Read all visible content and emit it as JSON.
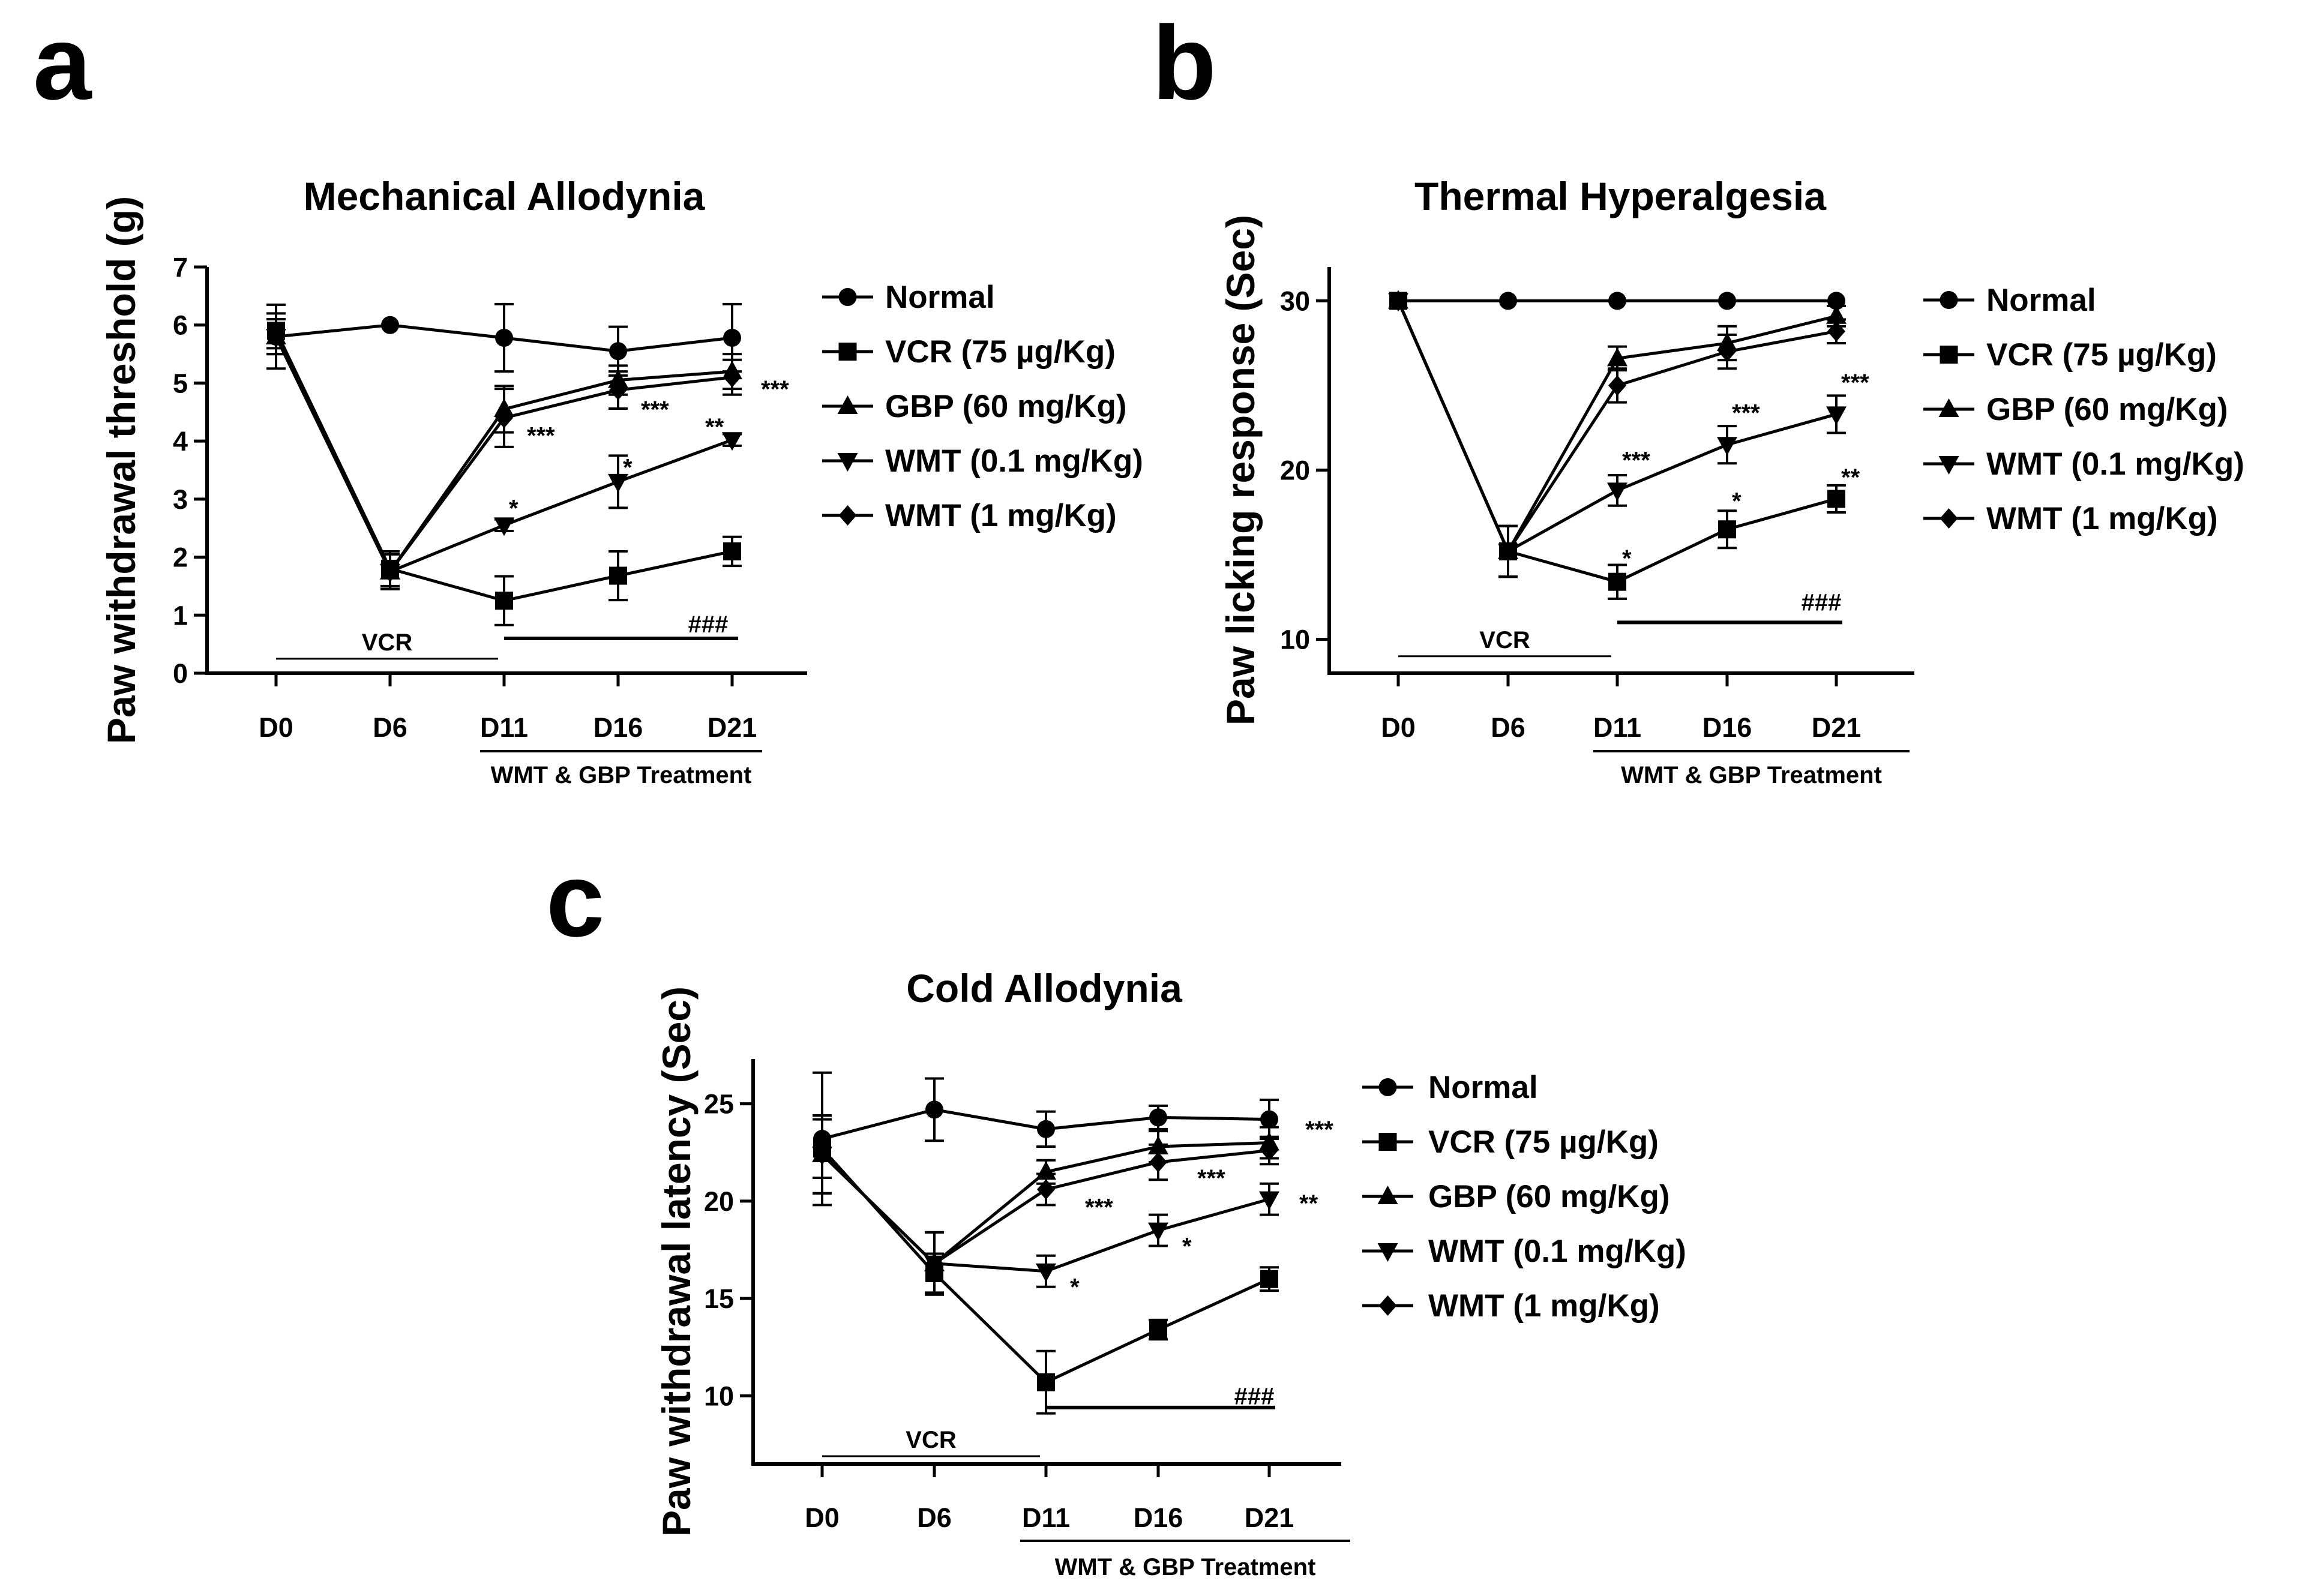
{
  "chart_data": [
    {
      "panel": "a",
      "type": "line",
      "title": "Mechanical Allodynia",
      "xlabel": "",
      "ylabel": "Paw withdrawal threshold (g)",
      "categories": [
        "D0",
        "D6",
        "D11",
        "D16",
        "D21"
      ],
      "ylim": [
        0,
        7
      ],
      "yticks": [
        0,
        1,
        2,
        3,
        4,
        5,
        6,
        7
      ],
      "legend_position": "right",
      "series": [
        {
          "name": "Normal",
          "marker": "circle",
          "values": [
            5.8,
            6.0,
            5.78,
            5.55,
            5.78
          ],
          "errors": [
            0.55,
            0.0,
            0.58,
            0.42,
            0.58
          ]
        },
        {
          "name": "VCR (75 µg/Kg)",
          "marker": "square",
          "values": [
            5.9,
            1.8,
            1.25,
            1.68,
            2.1
          ],
          "errors": [
            0.3,
            0.3,
            0.42,
            0.42,
            0.25
          ]
        },
        {
          "name": "GBP (60 mg/Kg)",
          "marker": "triangle-up",
          "values": [
            5.8,
            1.75,
            4.55,
            5.05,
            5.2
          ],
          "errors": [
            0.3,
            0.3,
            0.4,
            0.25,
            0.3
          ]
        },
        {
          "name": "WMT (0.1 mg/Kg)",
          "marker": "triangle-down",
          "values": [
            5.8,
            1.75,
            2.55,
            3.3,
            4.02
          ],
          "errors": [
            0.3,
            0.3,
            0.1,
            0.45,
            0.1
          ]
        },
        {
          "name": "WMT (1 mg/Kg)",
          "marker": "diamond",
          "values": [
            5.8,
            1.75,
            4.4,
            4.88,
            5.1
          ],
          "errors": [
            0.3,
            0.3,
            0.5,
            0.32,
            0.3
          ]
        }
      ],
      "annotations": [
        {
          "text": "***",
          "x": "D11",
          "y": 4.1
        },
        {
          "text": "***",
          "x": "D16",
          "y": 4.55
        },
        {
          "text": "***",
          "x": "D21",
          "y": 4.9
        },
        {
          "text": "*",
          "x": "D11",
          "y": 2.85
        },
        {
          "text": "*",
          "x": "D16",
          "y": 3.55
        },
        {
          "text": "**",
          "x": "D21",
          "y": 4.25
        },
        {
          "text": "###",
          "x": "D16",
          "y": 0.85
        }
      ],
      "bars": [
        {
          "label": "VCR",
          "from": "D0",
          "to": "D11",
          "y": 0.25
        },
        {
          "label": "",
          "from": "D11",
          "to": "D21",
          "y": 0.6
        }
      ],
      "treatment_label": "WMT & GBP Treatment"
    },
    {
      "panel": "b",
      "type": "line",
      "title": "Thermal Hyperalgesia",
      "xlabel": "",
      "ylabel": "Paw licking response (Sec)",
      "categories": [
        "D0",
        "D6",
        "D11",
        "D16",
        "D21"
      ],
      "ylim": [
        8,
        32
      ],
      "yticks": [
        10,
        20,
        30
      ],
      "legend_position": "right",
      "series": [
        {
          "name": "Normal",
          "marker": "circle",
          "values": [
            30,
            30,
            30,
            30,
            30
          ],
          "errors": [
            0,
            0,
            0,
            0,
            0
          ]
        },
        {
          "name": "VCR (75 µg/Kg)",
          "marker": "square",
          "values": [
            30,
            15.2,
            13.4,
            16.5,
            18.3
          ],
          "errors": [
            0,
            1.5,
            1.0,
            1.1,
            0.8
          ]
        },
        {
          "name": "GBP (60 mg/Kg)",
          "marker": "triangle-up",
          "values": [
            30,
            15.2,
            26.6,
            27.5,
            29.1
          ],
          "errors": [
            0,
            1.5,
            0.7,
            1.0,
            0.6
          ]
        },
        {
          "name": "WMT (0.1 mg/Kg)",
          "marker": "triangle-down",
          "values": [
            30,
            15.2,
            18.8,
            21.5,
            23.3
          ],
          "errors": [
            0,
            1.5,
            0.9,
            1.1,
            1.1
          ]
        },
        {
          "name": "WMT (1 mg/Kg)",
          "marker": "diamond",
          "values": [
            30,
            15.2,
            25.0,
            27.0,
            28.2
          ],
          "errors": [
            0,
            1.5,
            1.0,
            1.0,
            0.7
          ]
        }
      ],
      "annotations": [
        {
          "text": "***",
          "x": "D11",
          "y": 20.6
        },
        {
          "text": "***",
          "x": "D16",
          "y": 23.4
        },
        {
          "text": "***",
          "x": "D21",
          "y": 25.2
        },
        {
          "text": "*",
          "x": "D11",
          "y": 14.8
        },
        {
          "text": "*",
          "x": "D16",
          "y": 18.2
        },
        {
          "text": "**",
          "x": "D21",
          "y": 19.6
        },
        {
          "text": "###",
          "x": "D21",
          "y": 12.2
        }
      ],
      "bars": [
        {
          "label": "VCR",
          "from": "D0",
          "to": "D11",
          "y": 9.0
        },
        {
          "label": "",
          "from": "D11",
          "to": "D21",
          "y": 11.0
        }
      ],
      "treatment_label": "WMT & GBP Treatment"
    },
    {
      "panel": "c",
      "type": "line",
      "title": "Cold Allodynia",
      "xlabel": "",
      "ylabel": "Paw withdrawal latency (Sec)",
      "categories": [
        "D0",
        "D6",
        "D11",
        "D16",
        "D21"
      ],
      "ylim": [
        6.5,
        27.3
      ],
      "yticks": [
        10,
        15,
        20,
        25
      ],
      "legend_position": "right",
      "series": [
        {
          "name": "Normal",
          "marker": "circle",
          "values": [
            23.2,
            24.7,
            23.7,
            24.3,
            24.2
          ],
          "errors": [
            3.4,
            1.6,
            0.9,
            0.6,
            1.0
          ]
        },
        {
          "name": "VCR (75 µg/Kg)",
          "marker": "square",
          "values": [
            22.7,
            16.3,
            10.7,
            13.4,
            16.0
          ],
          "errors": [
            1.5,
            1.0,
            1.6,
            0.5,
            0.6
          ]
        },
        {
          "name": "GBP (60 mg/Kg)",
          "marker": "triangle-up",
          "values": [
            22.4,
            16.8,
            21.5,
            22.8,
            23.0
          ],
          "errors": [
            2.0,
            1.6,
            0.6,
            0.8,
            0.8
          ]
        },
        {
          "name": "WMT (0.1 mg/Kg)",
          "marker": "triangle-down",
          "values": [
            22.4,
            16.8,
            16.4,
            18.5,
            20.1
          ],
          "errors": [
            2.0,
            1.6,
            0.8,
            0.8,
            0.8
          ]
        },
        {
          "name": "WMT (1 mg/Kg)",
          "marker": "diamond",
          "values": [
            22.4,
            16.8,
            20.6,
            22.0,
            22.6
          ],
          "errors": [
            2.0,
            1.6,
            0.8,
            0.9,
            0.7
          ]
        }
      ],
      "annotations": [
        {
          "text": "***",
          "x": "D11",
          "y": 19.7
        },
        {
          "text": "***",
          "x": "D16",
          "y": 21.2
        },
        {
          "text": "***",
          "x": "D21",
          "y": 23.7
        },
        {
          "text": "*",
          "x": "D11",
          "y": 15.6
        },
        {
          "text": "*",
          "x": "D16",
          "y": 17.7
        },
        {
          "text": "**",
          "x": "D21",
          "y": 19.9
        },
        {
          "text": "###",
          "x": "D21",
          "y": 10.0
        }
      ],
      "bars": [
        {
          "label": "VCR",
          "from": "D0",
          "to": "D11",
          "y": 6.9
        },
        {
          "label": "",
          "from": "D11",
          "to": "D21",
          "y": 9.4
        }
      ],
      "treatment_label": "WMT & GBP Treatment"
    }
  ]
}
